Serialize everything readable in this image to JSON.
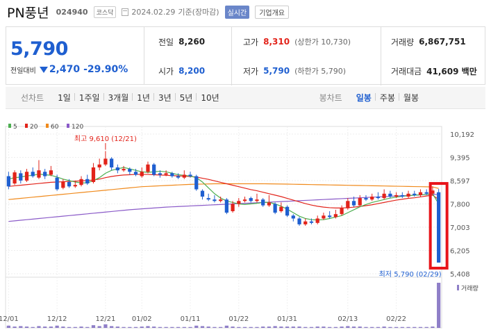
{
  "header": {
    "name": "PN풍년",
    "code": "024940",
    "market": "코스닥",
    "date": "2024.02.29",
    "basis": "기준(장마감)",
    "realtime_label": "실시간",
    "corp_label": "기업개요"
  },
  "summary": {
    "price": "5,790",
    "change_label": "전일대비",
    "change": "2,470",
    "change_pct": "-29.90%",
    "prev_close_label": "전일",
    "prev_close": "8,260",
    "open_label": "시가",
    "open": "8,200",
    "high_label": "고가",
    "high": "8,310",
    "upper_limit": "(상한가 10,730)",
    "low_label": "저가",
    "low": "5,790",
    "lower_limit": "(하한가 5,790)",
    "volume_label": "거래량",
    "volume": "6,867,751",
    "amount_label": "거래대금",
    "amount": "41,609 백만"
  },
  "tabs": {
    "line_label": "선차트",
    "line_periods": [
      "1일",
      "1주일",
      "3개월",
      "1년",
      "3년",
      "5년",
      "10년"
    ],
    "candle_label": "봉차트",
    "candle_periods": [
      "일봉",
      "주봉",
      "월봉"
    ],
    "active_candle": "일봉"
  },
  "chart_data": {
    "type": "candlestick",
    "legend": [
      {
        "name": "5",
        "color": "#4caf50"
      },
      {
        "name": "20",
        "color": "#e2231a"
      },
      {
        "name": "60",
        "color": "#f08a1c"
      },
      {
        "name": "120",
        "color": "#8a5ac8"
      }
    ],
    "y_ticks": [
      "10,192",
      "9,395",
      "8,597",
      "7,800",
      "7,003",
      "6,205",
      "5,408"
    ],
    "ylim": [
      5408,
      10192
    ],
    "x_ticks": [
      "12/01",
      "12/12",
      "12/21",
      "01/02",
      "01/11",
      "01/22",
      "01/31",
      "02/13",
      "02/22"
    ],
    "high_annotation": "최고 9,610 (12/21)",
    "low_annotation": "최저 5,790 (02/29)",
    "volume_label": "거래량",
    "candles": [
      {
        "o": 8750,
        "c": 8400,
        "h": 8900,
        "l": 8300
      },
      {
        "o": 8500,
        "c": 8880,
        "h": 8950,
        "l": 8450
      },
      {
        "o": 8850,
        "c": 8600,
        "h": 8950,
        "l": 8500
      },
      {
        "o": 8600,
        "c": 8900,
        "h": 9000,
        "l": 8550
      },
      {
        "o": 8900,
        "c": 8750,
        "h": 9050,
        "l": 8700
      },
      {
        "o": 8700,
        "c": 8950,
        "h": 9300,
        "l": 8650
      },
      {
        "o": 8900,
        "c": 8750,
        "h": 9000,
        "l": 8650
      },
      {
        "o": 8800,
        "c": 8950,
        "h": 9100,
        "l": 8750
      },
      {
        "o": 8700,
        "c": 8300,
        "h": 8800,
        "l": 8250
      },
      {
        "o": 8350,
        "c": 8550,
        "h": 8650,
        "l": 8300
      },
      {
        "o": 8550,
        "c": 8400,
        "h": 8650,
        "l": 8350
      },
      {
        "o": 8400,
        "c": 8450,
        "h": 8600,
        "l": 8350
      },
      {
        "o": 8450,
        "c": 8650,
        "h": 8750,
        "l": 8400
      },
      {
        "o": 8650,
        "c": 8500,
        "h": 8800,
        "l": 8450
      },
      {
        "o": 8550,
        "c": 9050,
        "h": 9200,
        "l": 8500
      },
      {
        "o": 9050,
        "c": 9150,
        "h": 9350,
        "l": 8950
      },
      {
        "o": 9150,
        "c": 9350,
        "h": 9610,
        "l": 9100
      },
      {
        "o": 9350,
        "c": 9050,
        "h": 9400,
        "l": 8950
      },
      {
        "o": 9050,
        "c": 8950,
        "h": 9150,
        "l": 8850
      },
      {
        "o": 8950,
        "c": 9000,
        "h": 9100,
        "l": 8900
      },
      {
        "o": 9000,
        "c": 8900,
        "h": 9050,
        "l": 8800
      },
      {
        "o": 8900,
        "c": 8800,
        "h": 9000,
        "l": 8750
      },
      {
        "o": 8750,
        "c": 8900,
        "h": 9050,
        "l": 8700
      },
      {
        "o": 8900,
        "c": 9150,
        "h": 9250,
        "l": 8850
      },
      {
        "o": 9150,
        "c": 8800,
        "h": 9200,
        "l": 8750
      },
      {
        "o": 8850,
        "c": 8800,
        "h": 8950,
        "l": 8700
      },
      {
        "o": 8800,
        "c": 8850,
        "h": 8950,
        "l": 8750
      },
      {
        "o": 8850,
        "c": 8750,
        "h": 8900,
        "l": 8700
      },
      {
        "o": 8750,
        "c": 8700,
        "h": 8850,
        "l": 8650
      },
      {
        "o": 8700,
        "c": 8800,
        "h": 8950,
        "l": 8650
      },
      {
        "o": 8800,
        "c": 8750,
        "h": 8900,
        "l": 8700
      },
      {
        "o": 8750,
        "c": 8300,
        "h": 8800,
        "l": 8250
      },
      {
        "o": 8250,
        "c": 8050,
        "h": 8300,
        "l": 7950
      },
      {
        "o": 8000,
        "c": 7950,
        "h": 8150,
        "l": 7900
      },
      {
        "o": 7950,
        "c": 7900,
        "h": 8100,
        "l": 7850
      },
      {
        "o": 7900,
        "c": 7950,
        "h": 8050,
        "l": 7850
      },
      {
        "o": 7950,
        "c": 7500,
        "h": 8000,
        "l": 7450
      },
      {
        "o": 7550,
        "c": 7800,
        "h": 7900,
        "l": 7500
      },
      {
        "o": 7800,
        "c": 7900,
        "h": 8000,
        "l": 7700
      },
      {
        "o": 7900,
        "c": 7950,
        "h": 8050,
        "l": 7850
      },
      {
        "o": 8000,
        "c": 7900,
        "h": 8050,
        "l": 7850
      },
      {
        "o": 7900,
        "c": 7950,
        "h": 8150,
        "l": 7850
      },
      {
        "o": 7950,
        "c": 7750,
        "h": 8000,
        "l": 7700
      },
      {
        "o": 7750,
        "c": 7850,
        "h": 8100,
        "l": 7700
      },
      {
        "o": 7800,
        "c": 7500,
        "h": 7850,
        "l": 7450
      },
      {
        "o": 7550,
        "c": 7700,
        "h": 7850,
        "l": 7500
      },
      {
        "o": 7700,
        "c": 7400,
        "h": 7750,
        "l": 7350
      },
      {
        "o": 7400,
        "c": 7300,
        "h": 7450,
        "l": 7200
      },
      {
        "o": 7300,
        "c": 7100,
        "h": 7350,
        "l": 7050
      },
      {
        "o": 7100,
        "c": 7200,
        "h": 7300,
        "l": 7050
      },
      {
        "o": 7200,
        "c": 7150,
        "h": 7300,
        "l": 7100
      },
      {
        "o": 7150,
        "c": 7300,
        "h": 7400,
        "l": 7100
      },
      {
        "o": 7300,
        "c": 7400,
        "h": 7500,
        "l": 7250
      },
      {
        "o": 7400,
        "c": 7350,
        "h": 7550,
        "l": 7300
      },
      {
        "o": 7350,
        "c": 7450,
        "h": 7600,
        "l": 7300
      },
      {
        "o": 7450,
        "c": 7650,
        "h": 7750,
        "l": 7400
      },
      {
        "o": 7650,
        "c": 7900,
        "h": 8000,
        "l": 7600
      },
      {
        "o": 7900,
        "c": 7750,
        "h": 8050,
        "l": 7700
      },
      {
        "o": 7750,
        "c": 8000,
        "h": 8100,
        "l": 7700
      },
      {
        "o": 8000,
        "c": 7950,
        "h": 8100,
        "l": 7900
      },
      {
        "o": 7950,
        "c": 8050,
        "h": 8150,
        "l": 7900
      },
      {
        "o": 8050,
        "c": 8000,
        "h": 8200,
        "l": 7950
      },
      {
        "o": 8000,
        "c": 8150,
        "h": 8300,
        "l": 7950
      },
      {
        "o": 8150,
        "c": 8050,
        "h": 8250,
        "l": 8000
      },
      {
        "o": 8050,
        "c": 8100,
        "h": 8200,
        "l": 8000
      },
      {
        "o": 8100,
        "c": 8050,
        "h": 8200,
        "l": 8000
      },
      {
        "o": 8050,
        "c": 8150,
        "h": 8250,
        "l": 8000
      },
      {
        "o": 8150,
        "c": 8100,
        "h": 8250,
        "l": 8050
      },
      {
        "o": 8100,
        "c": 8200,
        "h": 8300,
        "l": 8050
      },
      {
        "o": 8200,
        "c": 8150,
        "h": 8300,
        "l": 8100
      },
      {
        "o": 8150,
        "c": 8260,
        "h": 8400,
        "l": 8100
      },
      {
        "o": 8200,
        "c": 5790,
        "h": 8310,
        "l": 5790
      }
    ],
    "ma5": [
      8650,
      8700,
      8720,
      8760,
      8780,
      8820,
      8800,
      8780,
      8720,
      8650,
      8600,
      8550,
      8520,
      8520,
      8600,
      8700,
      8850,
      8950,
      9000,
      9050,
      9000,
      8950,
      8900,
      8880,
      8900,
      8920,
      8900,
      8850,
      8800,
      8780,
      8750,
      8700,
      8550,
      8350,
      8150,
      8000,
      7900,
      7850,
      7800,
      7780,
      7800,
      7820,
      7850,
      7850,
      7800,
      7720,
      7620,
      7500,
      7380,
      7300,
      7260,
      7250,
      7260,
      7300,
      7350,
      7400,
      7500,
      7600,
      7700,
      7780,
      7850,
      7900,
      7950,
      8000,
      8030,
      8060,
      8080,
      8100,
      8110,
      8120,
      8150,
      7800
    ],
    "ma20": [
      8400,
      8420,
      8440,
      8460,
      8480,
      8500,
      8520,
      8540,
      8550,
      8560,
      8570,
      8580,
      8590,
      8600,
      8620,
      8650,
      8700,
      8740,
      8770,
      8790,
      8800,
      8810,
      8810,
      8810,
      8800,
      8790,
      8780,
      8770,
      8760,
      8750,
      8740,
      8720,
      8680,
      8640,
      8590,
      8540,
      8490,
      8440,
      8390,
      8340,
      8290,
      8250,
      8200,
      8150,
      8100,
      8050,
      7990,
      7930,
      7870,
      7810,
      7760,
      7720,
      7690,
      7670,
      7660,
      7660,
      7670,
      7690,
      7710,
      7740,
      7770,
      7810,
      7850,
      7890,
      7930,
      7960,
      7990,
      8010,
      8040,
      8070,
      8100,
      7950
    ],
    "ma60": [
      7950,
      7970,
      7990,
      8010,
      8030,
      8050,
      8070,
      8090,
      8110,
      8130,
      8150,
      8170,
      8190,
      8210,
      8230,
      8250,
      8270,
      8290,
      8310,
      8330,
      8350,
      8370,
      8390,
      8400,
      8410,
      8420,
      8430,
      8440,
      8450,
      8460,
      8470,
      8475,
      8480,
      8485,
      8490,
      8490,
      8490,
      8490,
      8490,
      8490,
      8490,
      8490,
      8490,
      8488,
      8485,
      8482,
      8478,
      8474,
      8470,
      8466,
      8462,
      8458,
      8454,
      8450,
      8446,
      8442,
      8438,
      8434,
      8430,
      8426,
      8422,
      8418,
      8414,
      8410,
      8406,
      8402,
      8398,
      8394,
      8390,
      8386,
      8382,
      8330
    ],
    "ma120": [
      7200,
      7220,
      7240,
      7260,
      7280,
      7300,
      7320,
      7340,
      7360,
      7380,
      7400,
      7420,
      7440,
      7460,
      7480,
      7500,
      7520,
      7540,
      7560,
      7580,
      7600,
      7615,
      7630,
      7645,
      7660,
      7675,
      7690,
      7700,
      7710,
      7720,
      7730,
      7740,
      7750,
      7760,
      7770,
      7780,
      7790,
      7800,
      7810,
      7820,
      7830,
      7840,
      7850,
      7860,
      7870,
      7880,
      7890,
      7900,
      7910,
      7920,
      7930,
      7940,
      7950,
      7960,
      7970,
      7980,
      7990,
      8000,
      8010,
      8020,
      8030,
      8040,
      8050,
      8060,
      8070,
      8080,
      8090,
      8100,
      8110,
      8120,
      8130,
      8120
    ],
    "volume": [
      5,
      3,
      4,
      3,
      2,
      4,
      3,
      3,
      5,
      3,
      2,
      2,
      3,
      2,
      6,
      4,
      8,
      4,
      3,
      2,
      2,
      2,
      3,
      4,
      3,
      2,
      2,
      2,
      2,
      2,
      2,
      5,
      4,
      3,
      2,
      2,
      5,
      3,
      2,
      2,
      2,
      2,
      3,
      3,
      4,
      3,
      3,
      3,
      3,
      2,
      2,
      3,
      3,
      2,
      2,
      3,
      4,
      3,
      3,
      2,
      2,
      2,
      3,
      2,
      2,
      2,
      2,
      2,
      2,
      2,
      3,
      100
    ]
  }
}
